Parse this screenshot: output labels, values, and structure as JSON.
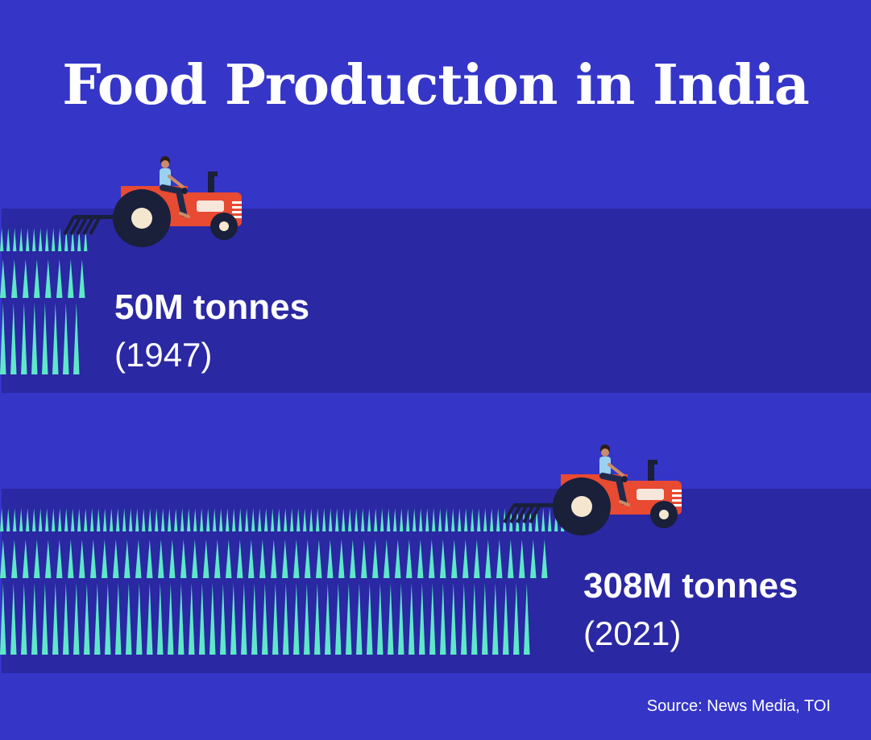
{
  "title": "Food Production in India",
  "source": "Source: News Media, TOI",
  "colors": {
    "background": "#3535c8",
    "band": "#2a28a3",
    "crop": "#5ee8c8",
    "tractor_body": "#e84a32",
    "tractor_wheel": "#1a1f3a",
    "text": "#ffffff"
  },
  "icons": [
    "tractor-icon",
    "farmer-icon",
    "crop-field"
  ],
  "chart_data": {
    "type": "bar",
    "categories": [
      "1947",
      "2021"
    ],
    "series": [
      {
        "values": [
          50,
          308
        ]
      }
    ],
    "unit": "M tonnes",
    "value_labels": [
      "50M tonnes",
      "308M tonnes"
    ],
    "year_labels": [
      "(1947)",
      "(2021)"
    ]
  }
}
